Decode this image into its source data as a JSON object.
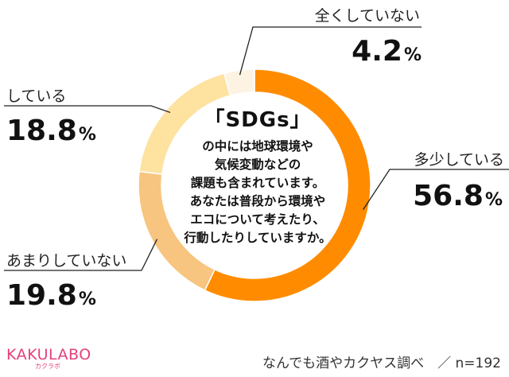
{
  "chart_data": {
    "type": "pie",
    "donut": true,
    "categories": [
      "多少している",
      "あまりしていない",
      "している",
      "全くしていない"
    ],
    "values": [
      56.8,
      19.8,
      18.8,
      4.2
    ],
    "value_labels": [
      {
        "number": "56.8",
        "unit": "%"
      },
      {
        "number": "19.8",
        "unit": "%"
      },
      {
        "number": "18.8",
        "unit": "%"
      },
      {
        "number": "4.2",
        "unit": "%"
      }
    ],
    "colors": [
      "#ff8c00",
      "#f7c57f",
      "#fde2a0",
      "#fdf3e3"
    ],
    "start_angle_deg": 0,
    "direction": "clockwise"
  },
  "center_question": {
    "title": "「SDGs」",
    "lines": [
      "の中には地球環境や",
      "気候変動などの",
      "課題も含まれています。",
      "あなたは普段から環境や",
      "エコについて考えたり、",
      "行動したりしていますか。"
    ]
  },
  "brand": {
    "name": "KAKULABO",
    "sub": "カクラボ",
    "color": "#e4407b"
  },
  "footer": {
    "text": "なんでも酒やカクヤス調べ　／ n=192"
  }
}
